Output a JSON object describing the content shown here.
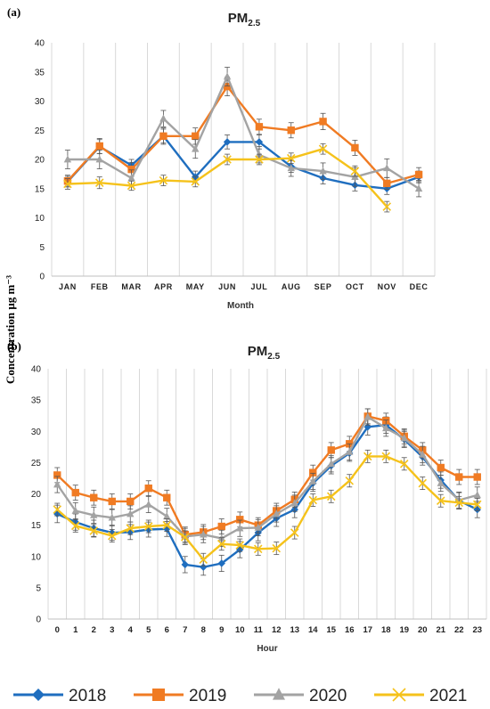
{
  "figure": {
    "ylabel": "Concentration μg m⁻³",
    "legend": [
      {
        "name": "2018",
        "color": "#1f6ebf",
        "marker": "diamond"
      },
      {
        "name": "2019",
        "color": "#f07b23",
        "marker": "square"
      },
      {
        "name": "2020",
        "color": "#a3a3a3",
        "marker": "triangle"
      },
      {
        "name": "2021",
        "color": "#f5c21b",
        "marker": "x"
      }
    ]
  },
  "chart_data": [
    {
      "type": "line",
      "panel_label": "(a)",
      "title": "PM",
      "title_sub": "2.5",
      "xlabel": "Month",
      "ylabel": "Concentration μg m⁻³",
      "ylim": [
        0,
        40
      ],
      "yticks": [
        0,
        5,
        10,
        15,
        20,
        25,
        30,
        35,
        40
      ],
      "grid": "vertical",
      "categories": [
        "JAN",
        "FEB",
        "MAR",
        "APR",
        "MAY",
        "JUN",
        "JUL",
        "AUG",
        "SEP",
        "OCT",
        "NOV",
        "DEC"
      ],
      "series": [
        {
          "name": "2018",
          "color": "#1f6ebf",
          "marker": "diamond",
          "values": [
            16.2,
            22.2,
            19.0,
            24.0,
            17.0,
            23.0,
            23.0,
            18.8,
            16.8,
            15.6,
            15.0,
            17.0
          ],
          "errors": [
            0.9,
            1.2,
            1.0,
            1.2,
            1.0,
            1.2,
            1.2,
            1.0,
            1.0,
            1.0,
            1.0,
            1.0
          ]
        },
        {
          "name": "2019",
          "color": "#f07b23",
          "marker": "square",
          "values": [
            16.3,
            22.3,
            18.3,
            24.0,
            24.0,
            32.5,
            25.6,
            25.0,
            26.5,
            22.0,
            15.9,
            17.4
          ],
          "errors": [
            1.0,
            1.3,
            1.2,
            1.4,
            1.4,
            1.6,
            1.3,
            1.3,
            1.4,
            1.3,
            1.0,
            1.2
          ]
        },
        {
          "name": "2020",
          "color": "#a3a3a3",
          "marker": "triangle",
          "values": [
            20.0,
            20.0,
            16.8,
            27.0,
            21.8,
            34.2,
            20.8,
            18.5,
            18.0,
            17.0,
            18.5,
            15.0
          ],
          "errors": [
            1.6,
            1.6,
            1.4,
            1.4,
            1.6,
            1.6,
            1.4,
            1.4,
            1.4,
            1.6,
            1.6,
            1.4
          ]
        },
        {
          "name": "2021",
          "color": "#f5c21b",
          "marker": "x",
          "values": [
            15.8,
            16.0,
            15.5,
            16.4,
            16.2,
            20.0,
            20.0,
            20.2,
            21.8,
            18.0,
            11.9,
            null
          ],
          "errors": [
            0.9,
            1.0,
            0.8,
            0.9,
            0.9,
            0.9,
            0.9,
            0.9,
            0.9,
            0.9,
            0.9,
            null
          ]
        }
      ]
    },
    {
      "type": "line",
      "panel_label": "(b)",
      "title": "PM",
      "title_sub": "2.5",
      "xlabel": "Hour",
      "ylabel": "Concentration μg m⁻³",
      "ylim": [
        0,
        40
      ],
      "yticks": [
        0,
        5,
        10,
        15,
        20,
        25,
        30,
        35,
        40
      ],
      "grid": "vertical",
      "categories": [
        "0",
        "1",
        "2",
        "3",
        "4",
        "5",
        "6",
        "7",
        "8",
        "9",
        "10",
        "11",
        "12",
        "13",
        "14",
        "15",
        "16",
        "17",
        "18",
        "19",
        "20",
        "21",
        "22",
        "23"
      ],
      "series": [
        {
          "name": "2018",
          "color": "#1f6ebf",
          "marker": "diamond",
          "values": [
            16.8,
            15.5,
            14.5,
            13.8,
            13.9,
            14.3,
            14.4,
            8.7,
            8.3,
            8.9,
            11.1,
            13.8,
            16.1,
            17.5,
            21.7,
            24.5,
            26.5,
            30.7,
            31.0,
            28.7,
            25.9,
            22.2,
            18.9,
            17.5
          ],
          "errors": [
            1.4,
            1.3,
            1.3,
            1.2,
            1.2,
            1.2,
            1.2,
            1.3,
            1.3,
            1.3,
            1.3,
            1.3,
            1.3,
            1.3,
            1.3,
            1.3,
            1.3,
            1.3,
            1.3,
            1.3,
            1.3,
            1.3,
            1.3,
            1.3
          ]
        },
        {
          "name": "2019",
          "color": "#f07b23",
          "marker": "square",
          "values": [
            23.0,
            20.2,
            19.4,
            18.8,
            18.8,
            20.9,
            19.4,
            13.5,
            13.9,
            14.8,
            15.9,
            15.0,
            17.3,
            19.1,
            23.4,
            27.0,
            28.0,
            32.4,
            31.7,
            29.2,
            27.0,
            24.2,
            22.7,
            22.7
          ],
          "errors": [
            1.2,
            1.2,
            1.2,
            1.2,
            1.2,
            1.2,
            1.2,
            1.2,
            1.2,
            1.2,
            1.2,
            1.2,
            1.2,
            1.2,
            1.2,
            1.2,
            1.2,
            1.2,
            1.2,
            1.2,
            1.2,
            1.2,
            1.2,
            1.2
          ]
        },
        {
          "name": "2020",
          "color": "#a3a3a3",
          "marker": "triangle",
          "values": [
            21.5,
            17.3,
            16.6,
            16.2,
            16.8,
            18.3,
            16.4,
            13.2,
            13.5,
            12.9,
            14.5,
            14.6,
            16.8,
            18.5,
            22.0,
            24.8,
            26.7,
            32.3,
            30.5,
            28.9,
            26.3,
            21.7,
            19.0,
            19.8
          ],
          "errors": [
            1.3,
            1.3,
            1.3,
            1.3,
            1.3,
            1.3,
            1.3,
            1.3,
            1.3,
            1.3,
            1.3,
            1.3,
            1.3,
            1.3,
            1.3,
            1.3,
            1.3,
            1.3,
            1.3,
            1.3,
            1.3,
            1.3,
            1.3,
            1.3
          ]
        },
        {
          "name": "2021",
          "color": "#f5c21b",
          "marker": "x",
          "values": [
            17.5,
            14.9,
            14.1,
            13.3,
            14.5,
            14.8,
            15.0,
            13.1,
            9.5,
            12.0,
            11.8,
            11.2,
            11.3,
            13.8,
            19.0,
            19.6,
            22.1,
            26.0,
            26.0,
            24.8,
            21.7,
            18.9,
            18.6,
            18.3
          ],
          "errors": [
            1.0,
            1.0,
            1.0,
            1.0,
            1.0,
            1.0,
            1.0,
            1.0,
            1.0,
            1.0,
            1.0,
            1.0,
            1.0,
            1.0,
            1.0,
            1.0,
            1.0,
            1.0,
            1.0,
            1.0,
            1.0,
            1.0,
            1.0,
            1.0
          ]
        }
      ]
    }
  ]
}
